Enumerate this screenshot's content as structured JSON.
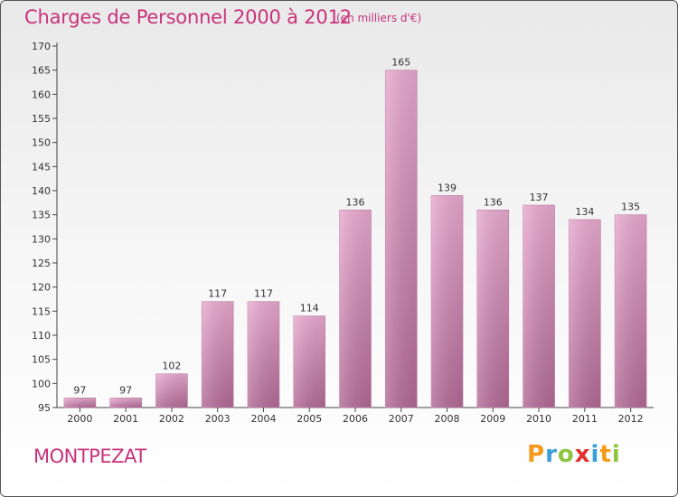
{
  "title": "Charges de Personnel 2000 à 2012",
  "subtitle": "(en milliers d'€)",
  "commune": "MONTPEZAT",
  "logo": {
    "letters": [
      "P",
      "r",
      "o",
      "x",
      "i",
      "t",
      "i"
    ],
    "colors": [
      "#f59a1b",
      "#3aa0d8",
      "#8cc63f",
      "#e2312c",
      "#3aa0d8",
      "#f59a1b",
      "#8cc63f"
    ]
  },
  "chart_data": {
    "type": "bar",
    "title": "Charges de Personnel 2000 à 2012",
    "subtitle": "(en milliers d'€)",
    "categories": [
      "2000",
      "2001",
      "2002",
      "2003",
      "2004",
      "2005",
      "2006",
      "2007",
      "2008",
      "2009",
      "2010",
      "2011",
      "2012"
    ],
    "values": [
      97,
      97,
      102,
      117,
      117,
      114,
      136,
      165,
      139,
      136,
      137,
      134,
      135
    ],
    "ylim": [
      95,
      170
    ],
    "yticks": [
      95,
      100,
      105,
      110,
      115,
      120,
      125,
      130,
      135,
      140,
      145,
      150,
      155,
      160,
      165,
      170
    ],
    "bar_color": "#d98bb8",
    "grid": false,
    "legend": "none"
  }
}
